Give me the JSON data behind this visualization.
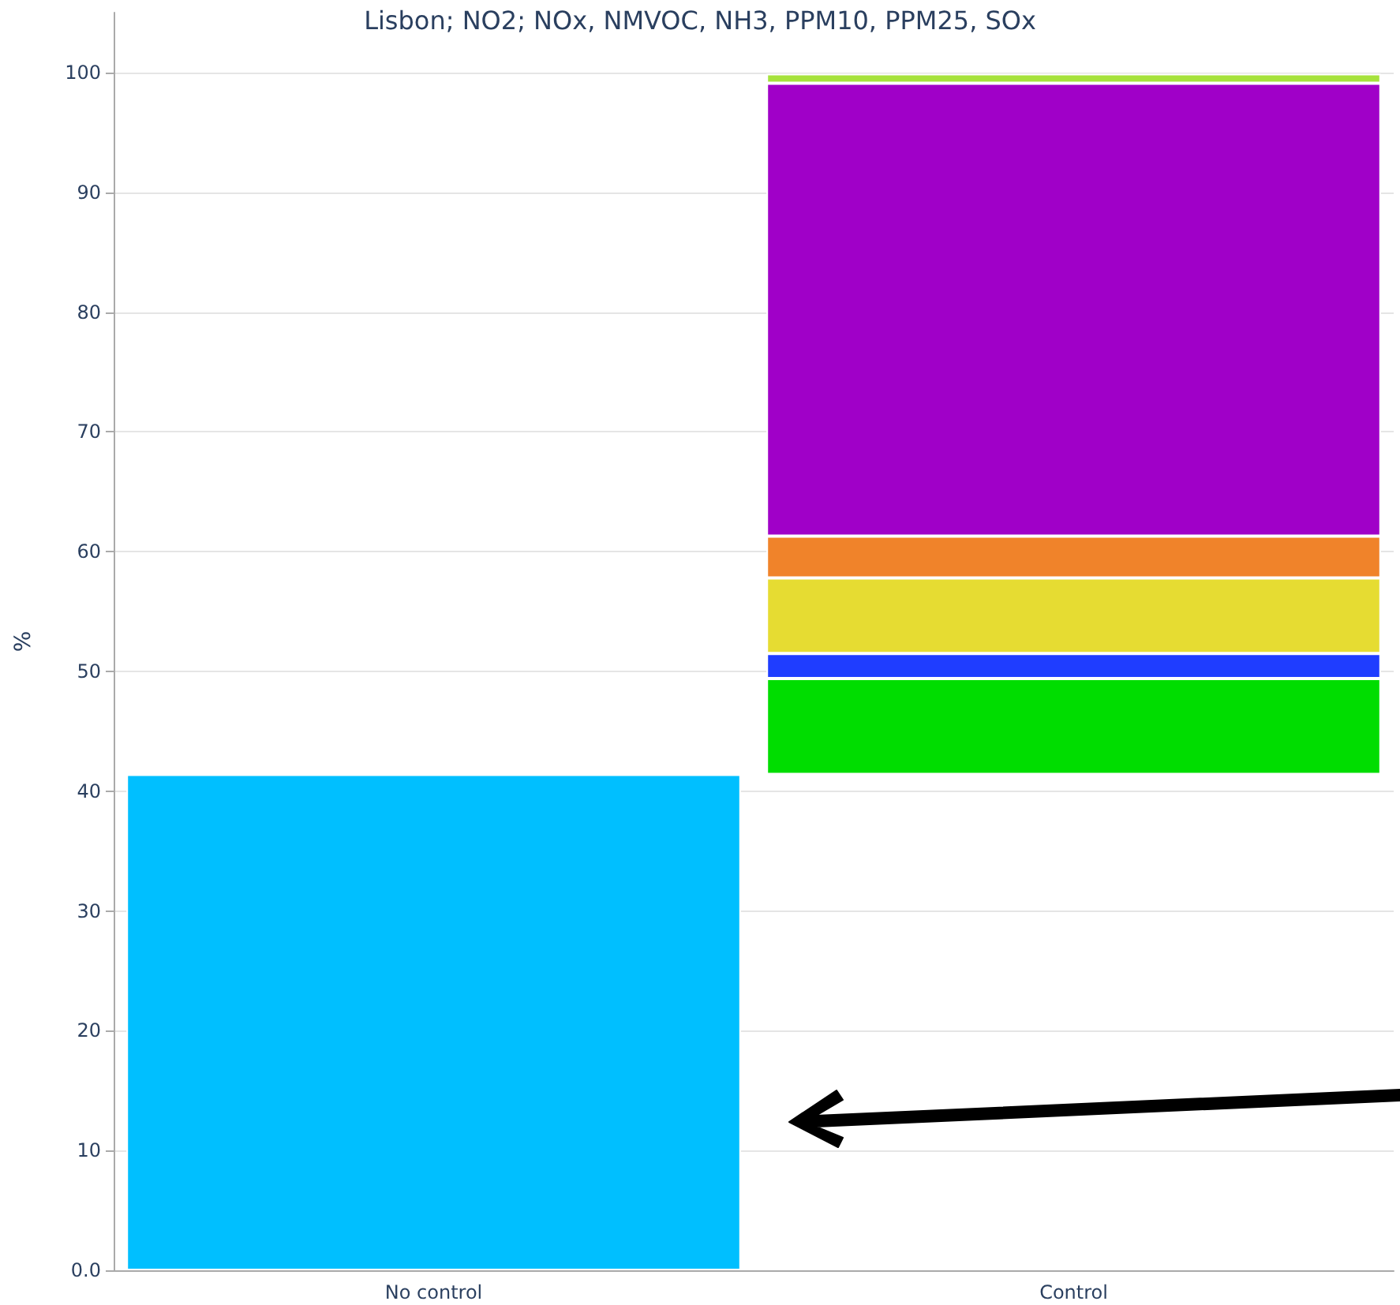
{
  "chart_data": {
    "type": "bar",
    "title": "Lisbon; NO2; NOx, NMVOC, NH3, PPM10, PPM25, SOx",
    "ylabel": "%",
    "categories": [
      "No control",
      "Control"
    ],
    "series": [
      {
        "color": "#00bfff",
        "values": [
          41.4,
          null
        ],
        "base": [
          0,
          null
        ]
      },
      {
        "color": "#00dd00",
        "values": [
          null,
          8.0
        ],
        "base": [
          null,
          41.4
        ]
      },
      {
        "color": "#1f3dff",
        "values": [
          null,
          2.1
        ],
        "base": [
          null,
          49.4
        ]
      },
      {
        "color": "#e6dc32",
        "values": [
          null,
          6.3
        ],
        "base": [
          null,
          51.5
        ]
      },
      {
        "color": "#f0832a",
        "values": [
          null,
          3.5
        ],
        "base": [
          null,
          57.8
        ]
      },
      {
        "color": "#a000c8",
        "values": [
          null,
          37.8
        ],
        "base": [
          null,
          61.3
        ]
      },
      {
        "color": "#a6e23c",
        "values": [
          null,
          0.8
        ],
        "base": [
          null,
          99.1
        ]
      }
    ],
    "ylim": [
      0,
      105
    ],
    "yticks": [
      {
        "value": 0,
        "label": "0.0"
      },
      10,
      20,
      30,
      40,
      50,
      60,
      70,
      80,
      90,
      100
    ],
    "grid": "y"
  }
}
